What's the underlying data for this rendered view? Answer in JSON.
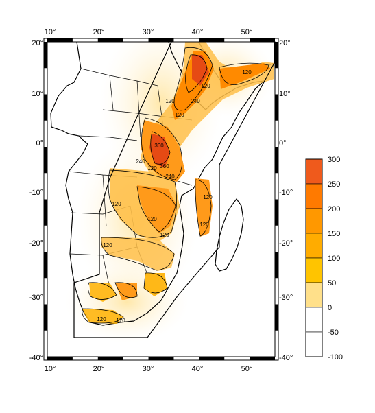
{
  "map": {
    "lon_min": 10,
    "lon_max": 55,
    "lat_min": -40,
    "lat_max": 20,
    "lon_ticks": [
      "10°",
      "20°",
      "30°",
      "40°",
      "50°"
    ],
    "lat_ticks": [
      "20°",
      "10°",
      "0°",
      "-10°",
      "-20°",
      "-30°",
      "-40°"
    ],
    "contour_labels": [
      "120",
      "120",
      "240",
      "120",
      "120",
      "360",
      "240",
      "120",
      "360",
      "240",
      "120",
      "120",
      "120",
      "120",
      "120",
      "120",
      "120",
      "120"
    ],
    "colors": {
      "low": "#fff6de",
      "mid_low": "#ffd76e",
      "mid": "#ffb300",
      "mid_high": "#ff8a00",
      "high": "#e64a14",
      "frame": "#000000",
      "land": "#ffffff"
    }
  },
  "colorbar": {
    "labels": [
      "300",
      "250",
      "200",
      "150",
      "100",
      "50",
      "0",
      "-50",
      "-100"
    ],
    "colors": [
      "#ef5a1c",
      "#ff7a00",
      "#ff9800",
      "#ffac00",
      "#ffc400",
      "#ffe08a",
      "#ffffff",
      "#ffffff"
    ]
  }
}
